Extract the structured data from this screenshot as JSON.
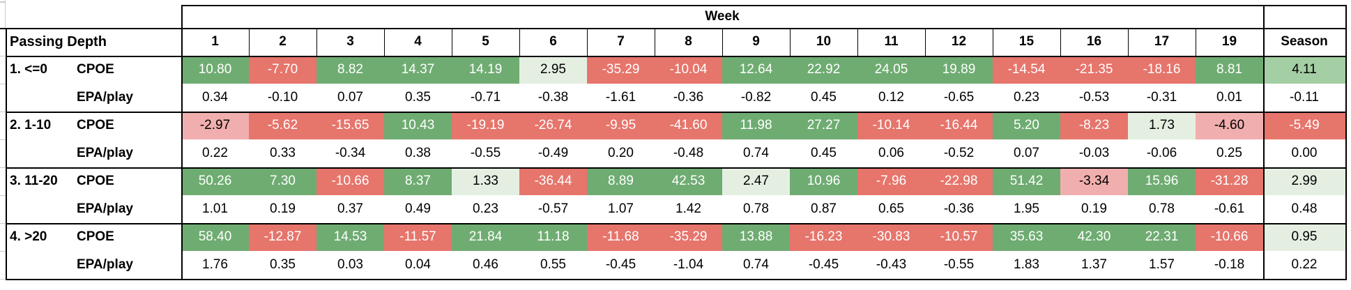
{
  "colors": {
    "green": {
      "bg": "#6FAC72",
      "fg": "#FFFFFF"
    },
    "red": {
      "bg": "#E6756C",
      "fg": "#FFFFFF"
    },
    "pink": {
      "bg": "#F0AFAE",
      "fg": "#000000"
    },
    "light_green": {
      "bg": "#E4EFE2",
      "fg": "#000000"
    },
    "mid_green": {
      "bg": "#A4CEA4",
      "fg": "#000000"
    },
    "white": {
      "bg": "#FFFFFF",
      "fg": "#000000"
    }
  },
  "chart_data": {
    "type": "table",
    "week_header": "Week",
    "row_header": "Passing Depth",
    "season_header": "Season",
    "week_columns": [
      "1",
      "2",
      "3",
      "4",
      "5",
      "6",
      "7",
      "8",
      "9",
      "10",
      "11",
      "12",
      "15",
      "16",
      "17",
      "19"
    ],
    "groups": [
      {
        "label": "1. <=0",
        "rows": [
          {
            "metric": "CPOE",
            "values": [
              "10.80",
              "-7.70",
              "8.82",
              "14.37",
              "14.19",
              "2.95",
              "-35.29",
              "-10.04",
              "12.64",
              "22.92",
              "24.05",
              "19.89",
              "-14.54",
              "-21.35",
              "-18.16",
              "8.81",
              "4.11"
            ],
            "colors": [
              "green",
              "red",
              "green",
              "green",
              "green",
              "light_green",
              "red",
              "red",
              "green",
              "green",
              "green",
              "green",
              "red",
              "red",
              "red",
              "green",
              "mid_green"
            ]
          },
          {
            "metric": "EPA/play",
            "values": [
              "0.34",
              "-0.10",
              "0.07",
              "0.35",
              "-0.71",
              "-0.38",
              "-1.61",
              "-0.36",
              "-0.82",
              "0.45",
              "0.12",
              "-0.65",
              "0.23",
              "-0.53",
              "-0.31",
              "0.01",
              "-0.11"
            ]
          }
        ]
      },
      {
        "label": "2. 1-10",
        "rows": [
          {
            "metric": "CPOE",
            "values": [
              "-2.97",
              "-5.62",
              "-15.65",
              "10.43",
              "-19.19",
              "-26.74",
              "-9.95",
              "-41.60",
              "11.98",
              "27.27",
              "-10.14",
              "-16.44",
              "5.20",
              "-8.23",
              "1.73",
              "-4.60",
              "-5.49"
            ],
            "colors": [
              "pink",
              "red",
              "red",
              "green",
              "red",
              "red",
              "red",
              "red",
              "green",
              "green",
              "red",
              "red",
              "green",
              "red",
              "light_green",
              "pink",
              "red"
            ]
          },
          {
            "metric": "EPA/play",
            "values": [
              "0.22",
              "0.33",
              "-0.34",
              "0.38",
              "-0.55",
              "-0.49",
              "0.20",
              "-0.48",
              "0.74",
              "0.45",
              "0.06",
              "-0.52",
              "0.07",
              "-0.03",
              "-0.06",
              "0.25",
              "0.00"
            ]
          }
        ]
      },
      {
        "label": "3. 11-20",
        "rows": [
          {
            "metric": "CPOE",
            "values": [
              "50.26",
              "7.30",
              "-10.66",
              "8.37",
              "1.33",
              "-36.44",
              "8.89",
              "42.53",
              "2.47",
              "10.96",
              "-7.96",
              "-22.98",
              "51.42",
              "-3.34",
              "15.96",
              "-31.28",
              "2.99"
            ],
            "colors": [
              "green",
              "green",
              "red",
              "green",
              "light_green",
              "red",
              "green",
              "green",
              "light_green",
              "green",
              "red",
              "red",
              "green",
              "pink",
              "green",
              "red",
              "light_green"
            ]
          },
          {
            "metric": "EPA/play",
            "values": [
              "1.01",
              "0.19",
              "0.37",
              "0.49",
              "0.23",
              "-0.57",
              "1.07",
              "1.42",
              "0.78",
              "0.87",
              "0.65",
              "-0.36",
              "1.95",
              "0.19",
              "0.78",
              "-0.61",
              "0.48"
            ]
          }
        ]
      },
      {
        "label": "4. >20",
        "rows": [
          {
            "metric": "CPOE",
            "values": [
              "58.40",
              "-12.87",
              "14.53",
              "-11.57",
              "21.84",
              "11.18",
              "-11.68",
              "-35.29",
              "13.88",
              "-16.23",
              "-30.83",
              "-10.57",
              "35.63",
              "42.30",
              "22.31",
              "-10.66",
              "0.95"
            ],
            "colors": [
              "green",
              "red",
              "green",
              "red",
              "green",
              "green",
              "red",
              "red",
              "green",
              "red",
              "red",
              "red",
              "green",
              "green",
              "green",
              "red",
              "light_green"
            ]
          },
          {
            "metric": "EPA/play",
            "values": [
              "1.76",
              "0.35",
              "0.03",
              "0.04",
              "0.46",
              "0.55",
              "-0.45",
              "-1.04",
              "0.74",
              "-0.45",
              "-0.43",
              "-0.55",
              "1.83",
              "1.37",
              "1.57",
              "-0.18",
              "0.22"
            ]
          }
        ]
      }
    ]
  }
}
